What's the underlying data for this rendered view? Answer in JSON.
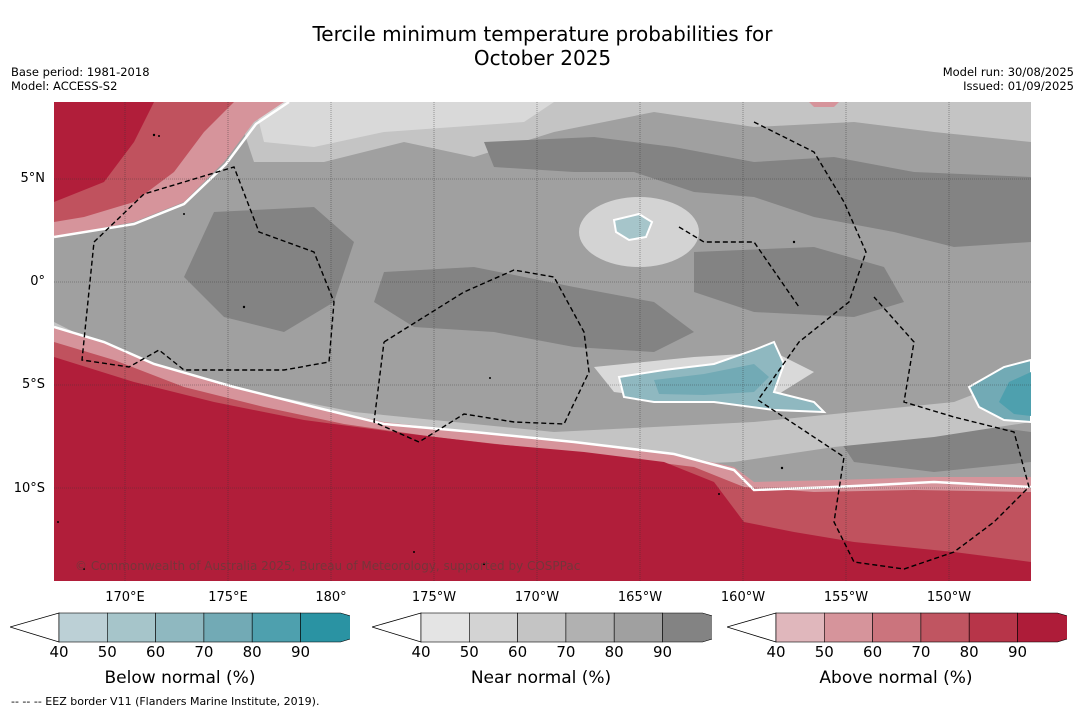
{
  "title_line1": "Tercile minimum temperature probabilities for",
  "title_line2": "October 2025",
  "meta_left": [
    "Base period: 1981-2018",
    "Model: ACCESS-S2"
  ],
  "meta_right": [
    "Model run: 30/08/2025",
    "Issued: 01/09/2025"
  ],
  "lat_ticks": [
    "5°N",
    "0°",
    "5°S",
    "10°S"
  ],
  "lon_ticks": [
    "170°E",
    "175°E",
    "180°",
    "175°W",
    "170°W",
    "165°W",
    "160°W",
    "155°W",
    "150°W"
  ],
  "copyright": "© Commonwealth of Australia 2025, Bureau of Meteorology, supported by COSPPac",
  "footer": "--  --  -- EEZ border V11 (Flanders Marine Institute, 2019).",
  "colorbars": [
    {
      "label": "Below normal (%)",
      "ticks": [
        "40",
        "50",
        "60",
        "70",
        "80",
        "90"
      ],
      "colors": [
        "#bcd0d6",
        "#a6c5ca",
        "#8fb8c0",
        "#72aab5",
        "#4ea0ae",
        "#2a93a3"
      ]
    },
    {
      "label": "Near normal (%)",
      "ticks": [
        "40",
        "50",
        "60",
        "70",
        "80",
        "90"
      ],
      "colors": [
        "#e4e4e4",
        "#d3d3d3",
        "#c4c4c4",
        "#b1b1b1",
        "#a0a0a0",
        "#838383"
      ]
    },
    {
      "label": "Above normal (%)",
      "ticks": [
        "40",
        "50",
        "60",
        "70",
        "80",
        "90"
      ],
      "colors": [
        "#e0b7bc",
        "#d6949b",
        "#cb747d",
        "#c05561",
        "#b73549",
        "#ae1c39"
      ]
    }
  ],
  "colors": {
    "above_strong": "#b11e3a",
    "above_mid": "#c0525e",
    "above_light": "#d6949b",
    "near_dark": "#838383",
    "near_mid": "#a0a0a0",
    "near_light": "#c4c4c4",
    "near_pale": "#d9d9d9",
    "below_mid": "#72aab5",
    "below_light": "#a6c5ca"
  }
}
